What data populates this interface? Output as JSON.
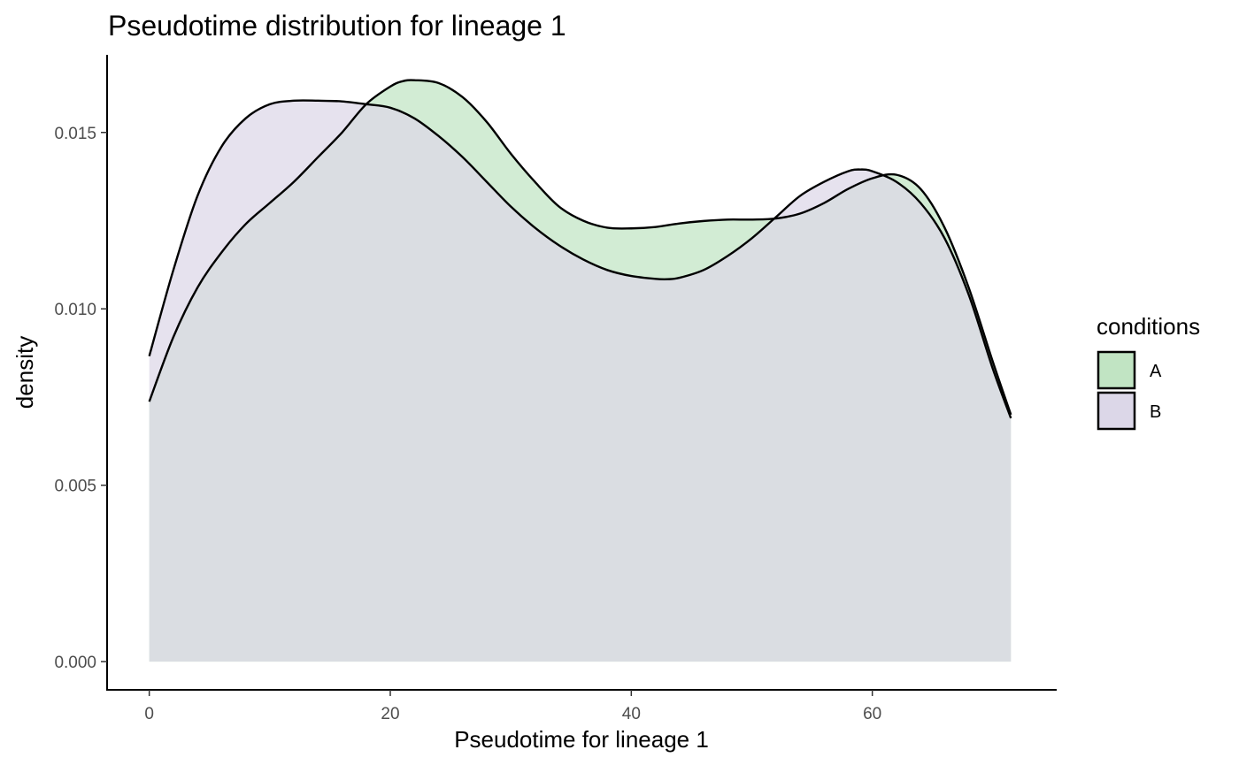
{
  "chart_data": {
    "type": "area",
    "title": "Pseudotime distribution for lineage 1",
    "xlabel": "Pseudotime for lineage 1",
    "ylabel": "density",
    "xlim": [
      -3.5,
      75.3
    ],
    "ylim": [
      -0.0008,
      0.0172
    ],
    "x_ticks": [
      0,
      20,
      40,
      60
    ],
    "x_tick_labels": [
      "0",
      "20",
      "40",
      "60"
    ],
    "y_ticks": [
      0,
      0.005,
      0.01,
      0.015
    ],
    "y_tick_labels": [
      "0.000",
      "0.005",
      "0.010",
      "0.015"
    ],
    "grid": false,
    "legend": {
      "title": "conditions",
      "position": "right"
    },
    "series": [
      {
        "name": "A",
        "color": "#C1E4C3",
        "x": [
          0,
          2,
          4,
          6,
          8,
          10,
          12,
          14,
          16,
          18,
          20,
          21,
          22,
          24,
          26,
          28,
          30,
          32,
          34,
          36,
          38,
          40,
          42,
          44,
          46,
          48,
          50,
          52,
          54,
          56,
          58,
          60,
          62,
          64,
          66,
          68,
          70,
          71.5
        ],
        "y": [
          0.00737,
          0.0092,
          0.0106,
          0.0116,
          0.0124,
          0.013,
          0.0136,
          0.0143,
          0.015,
          0.0158,
          0.0163,
          0.01645,
          0.01648,
          0.0164,
          0.016,
          0.0153,
          0.0144,
          0.0136,
          0.0129,
          0.0125,
          0.0123,
          0.01228,
          0.01232,
          0.01242,
          0.01249,
          0.01253,
          0.01253,
          0.01256,
          0.0127,
          0.013,
          0.0134,
          0.0137,
          0.0138,
          0.0134,
          0.0123,
          0.0106,
          0.0085,
          0.007
        ]
      },
      {
        "name": "B",
        "color": "#DCD7E8",
        "x": [
          0,
          2,
          4,
          6,
          8,
          10,
          12,
          14,
          16,
          18,
          20,
          22,
          24,
          26,
          28,
          30,
          32,
          34,
          36,
          38,
          40,
          42,
          43,
          44,
          46,
          48,
          50,
          52,
          54,
          56,
          58,
          59,
          60,
          62,
          64,
          66,
          68,
          70,
          71.5
        ],
        "y": [
          0.00866,
          0.0111,
          0.0132,
          0.0146,
          0.0154,
          0.0158,
          0.0159,
          0.0159,
          0.01588,
          0.0158,
          0.0157,
          0.0154,
          0.0149,
          0.0143,
          0.0136,
          0.0129,
          0.0123,
          0.0118,
          0.0114,
          0.0111,
          0.01093,
          0.01085,
          0.01084,
          0.01088,
          0.0111,
          0.0115,
          0.012,
          0.0126,
          0.0132,
          0.0136,
          0.0139,
          0.01395,
          0.0139,
          0.0136,
          0.013,
          0.012,
          0.0104,
          0.0083,
          0.0069
        ]
      }
    ]
  }
}
